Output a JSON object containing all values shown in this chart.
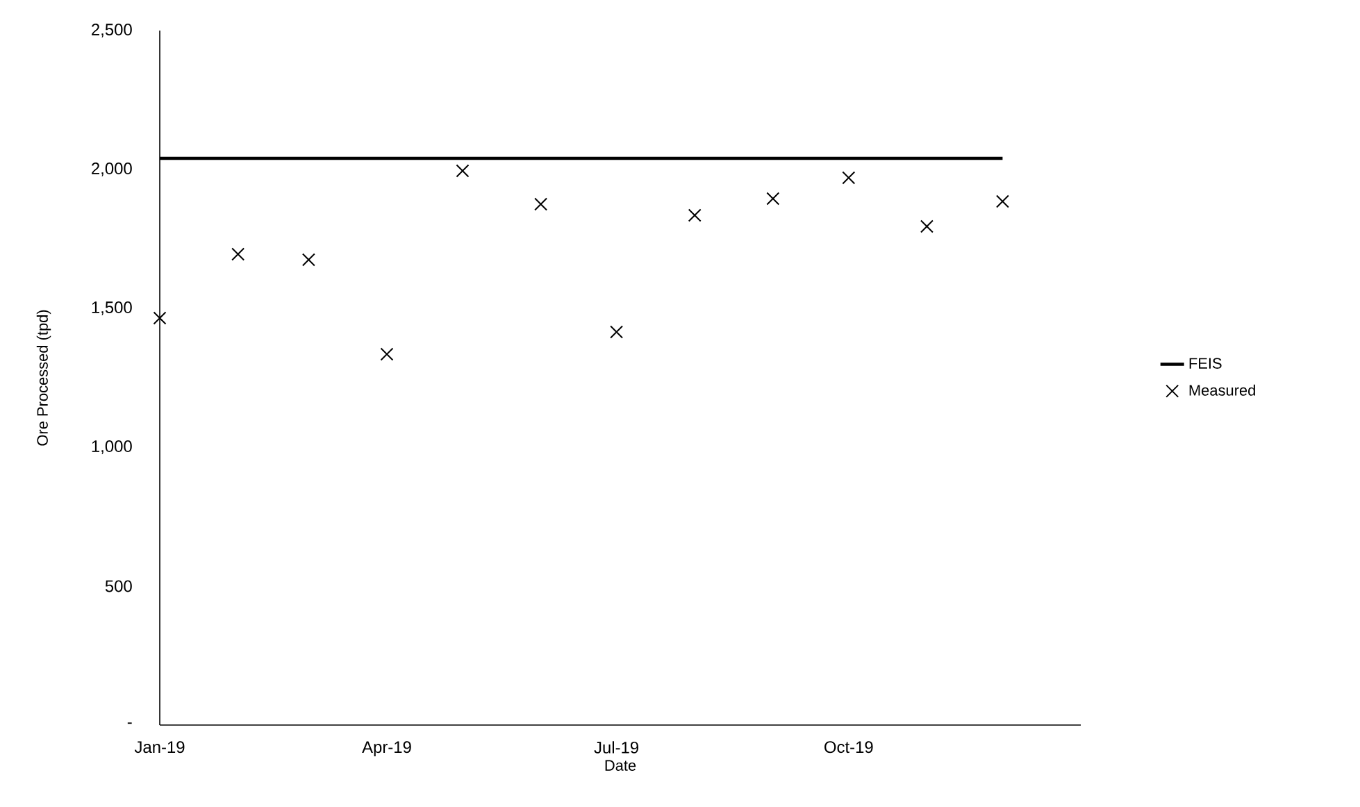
{
  "chart_data": {
    "type": "scatter",
    "xlabel": "Date",
    "ylabel": "Ore Processed (tpd)",
    "x": [
      "2019-01",
      "2019-02",
      "2019-03",
      "2019-04",
      "2019-05",
      "2019-06",
      "2019-07",
      "2019-08",
      "2019-09",
      "2019-10",
      "2019-11",
      "2019-12"
    ],
    "series": [
      {
        "name": "FEIS",
        "type": "line",
        "color": "#000000",
        "marker": "none",
        "line_style": "solid",
        "x": [
          "2019-01",
          "2019-12"
        ],
        "values": [
          2040,
          2040
        ]
      },
      {
        "name": "Measured",
        "color": "#000000",
        "marker": "cross",
        "values": [
          1465,
          1695,
          1675,
          1335,
          1995,
          1875,
          1415,
          1835,
          1895,
          1970,
          1795,
          1885
        ]
      }
    ],
    "xlim": [
      "2019-01",
      "2020-01"
    ],
    "xticks": [
      {
        "value": "2019-01",
        "label": "Jan-19"
      },
      {
        "value": "2019-04",
        "label": "Apr-19"
      },
      {
        "value": "2019-07",
        "label": "Jul-19"
      },
      {
        "value": "2019-10",
        "label": "Oct-19"
      }
    ],
    "ylim": [
      0,
      2500
    ],
    "yticks": [
      {
        "value": 0,
        "label": "-"
      },
      {
        "value": 500,
        "label": "500"
      },
      {
        "value": 1000,
        "label": "1,000"
      },
      {
        "value": 1500,
        "label": "1,500"
      },
      {
        "value": 2000,
        "label": "2,000"
      },
      {
        "value": 2500,
        "label": "2,500"
      }
    ],
    "grid": false,
    "legend": "right"
  }
}
